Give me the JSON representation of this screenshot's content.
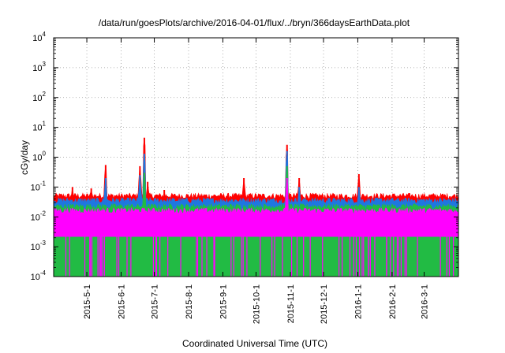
{
  "chart_data": {
    "type": "area",
    "title": "/data/run/goesPlots/archive/2016-04-01/flux/../bryn/366daysEarthData.plot",
    "xlabel": "Coordinated Universal Time (UTC)",
    "ylabel": "cGy/day",
    "y_scale": "log",
    "ylim": [
      0.0001,
      10000
    ],
    "xlim": [
      "2015-04-01",
      "2016-04-01"
    ],
    "grid": true,
    "y_ticks": [
      {
        "base": "10",
        "exp": "-4",
        "value": 0.0001
      },
      {
        "base": "10",
        "exp": "-3",
        "value": 0.001
      },
      {
        "base": "10",
        "exp": "-2",
        "value": 0.01
      },
      {
        "base": "10",
        "exp": "-1",
        "value": 0.1
      },
      {
        "base": "10",
        "exp": "0",
        "value": 1
      },
      {
        "base": "10",
        "exp": "1",
        "value": 10
      },
      {
        "base": "10",
        "exp": "2",
        "value": 100
      },
      {
        "base": "10",
        "exp": "3",
        "value": 1000
      },
      {
        "base": "10",
        "exp": "4",
        "value": 10000
      }
    ],
    "x_ticks": [
      {
        "label": "2015-5-1",
        "date": "2015-05-01"
      },
      {
        "label": "2015-6-1",
        "date": "2015-06-01"
      },
      {
        "label": "2015-7-1",
        "date": "2015-07-01"
      },
      {
        "label": "2015-8-1",
        "date": "2015-08-01"
      },
      {
        "label": "2015-9-1",
        "date": "2015-09-01"
      },
      {
        "label": "2015-10-1",
        "date": "2015-10-01"
      },
      {
        "label": "2015-11-1",
        "date": "2015-11-01"
      },
      {
        "label": "2015-12-1",
        "date": "2015-12-01"
      },
      {
        "label": "2016-1-1",
        "date": "2016-01-01"
      },
      {
        "label": "2016-2-1",
        "date": "2016-02-01"
      },
      {
        "label": "2016-3-1",
        "date": "2016-03-01"
      }
    ],
    "series": [
      {
        "color": "#ff0000",
        "baseline": 0.05,
        "spikes": [
          {
            "date": "2015-04-18",
            "value": 0.1
          },
          {
            "date": "2015-05-05",
            "value": 0.09
          },
          {
            "date": "2015-05-18",
            "value": 0.55
          },
          {
            "date": "2015-06-18",
            "value": 0.5
          },
          {
            "date": "2015-06-22",
            "value": 4.5
          },
          {
            "date": "2015-06-25",
            "value": 0.15
          },
          {
            "date": "2015-07-10",
            "value": 0.08
          },
          {
            "date": "2015-09-20",
            "value": 0.2
          },
          {
            "date": "2015-10-29",
            "value": 2.6
          },
          {
            "date": "2015-11-09",
            "value": 0.2
          },
          {
            "date": "2016-01-02",
            "value": 0.27
          }
        ]
      },
      {
        "color": "#1f77e0",
        "baseline": 0.035,
        "spikes": [
          {
            "date": "2015-05-18",
            "value": 0.2
          },
          {
            "date": "2015-06-18",
            "value": 0.25
          },
          {
            "date": "2015-06-22",
            "value": 1.3
          },
          {
            "date": "2015-10-29",
            "value": 1.6
          },
          {
            "date": "2015-11-09",
            "value": 0.1
          },
          {
            "date": "2016-01-02",
            "value": 0.1
          }
        ]
      },
      {
        "color": "#22bb44",
        "baseline": 0.022,
        "spikes": [
          {
            "date": "2015-06-22",
            "value": 0.3
          },
          {
            "date": "2015-10-29",
            "value": 0.5
          }
        ]
      },
      {
        "color": "#ff00ff",
        "baseline": 0.016,
        "floor": 0.0022,
        "spikes": [
          {
            "date": "2015-10-29",
            "value": 0.2
          }
        ]
      }
    ]
  }
}
